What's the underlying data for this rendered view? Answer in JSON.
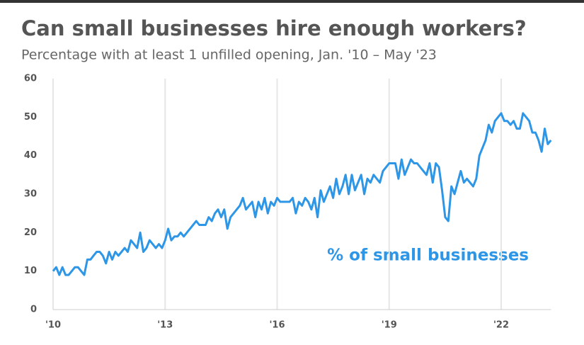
{
  "chart_data": {
    "type": "line",
    "title": "Can small businesses hire enough workers?",
    "subtitle": "Percentage with at least 1 unfilled opening, Jan. '10 –  May '23",
    "annotation": "% of small businesses",
    "categories": [
      "'10",
      null,
      null,
      null,
      null,
      null,
      null,
      null,
      null,
      null,
      null,
      null,
      null,
      null,
      null,
      null,
      null,
      null,
      null,
      null,
      null,
      null,
      null,
      null,
      null,
      null,
      null,
      null,
      null,
      null,
      null,
      null,
      null,
      null,
      null,
      null,
      "'13",
      null,
      null,
      null,
      null,
      null,
      null,
      null,
      null,
      null,
      null,
      null,
      null,
      null,
      null,
      null,
      null,
      null,
      null,
      null,
      null,
      null,
      null,
      null,
      null,
      null,
      null,
      null,
      null,
      null,
      null,
      null,
      null,
      null,
      null,
      null,
      "'16",
      null,
      null,
      null,
      null,
      null,
      null,
      null,
      null,
      null,
      null,
      null,
      null,
      null,
      null,
      null,
      null,
      null,
      null,
      null,
      null,
      null,
      null,
      null,
      null,
      null,
      null,
      null,
      null,
      null,
      null,
      null,
      null,
      null,
      null,
      null,
      "'19",
      null,
      null,
      null,
      null,
      null,
      null,
      null,
      null,
      null,
      null,
      null,
      null,
      null,
      null,
      null,
      null,
      null,
      null,
      null,
      null,
      null,
      null,
      null,
      null,
      null,
      null,
      null,
      null,
      null,
      null,
      null,
      null,
      null,
      null,
      null,
      "'22",
      null,
      null,
      null,
      null,
      null,
      null,
      null,
      null,
      null,
      null,
      null,
      null,
      null,
      null,
      null,
      null
    ],
    "series": [
      {
        "name": "% of small businesses",
        "color": "#2e96e6",
        "values": [
          10,
          11,
          9,
          11,
          9,
          9,
          10,
          11,
          11,
          10,
          9,
          13,
          13,
          14,
          15,
          15,
          14,
          12,
          15,
          13,
          15,
          14,
          15,
          16,
          15,
          18,
          17,
          16,
          20,
          15,
          16,
          18,
          17,
          16,
          17,
          16,
          18,
          21,
          18,
          19,
          19,
          20,
          19,
          20,
          21,
          22,
          23,
          22,
          22,
          22,
          24,
          23,
          25,
          26,
          24,
          26,
          21,
          24,
          25,
          26,
          27,
          29,
          26,
          27,
          28,
          24,
          28,
          26,
          29,
          25,
          28,
          27,
          29,
          28,
          28,
          28,
          28,
          29,
          25,
          28,
          27,
          29,
          28,
          26,
          29,
          24,
          31,
          28,
          30,
          32,
          29,
          34,
          30,
          32,
          35,
          30,
          35,
          31,
          33,
          35,
          30,
          34,
          33,
          35,
          34,
          33,
          36,
          37,
          38,
          38,
          38,
          34,
          39,
          35,
          37,
          39,
          38,
          38,
          37,
          36,
          35,
          38,
          33,
          38,
          37,
          31,
          24,
          23,
          32,
          30,
          33,
          36,
          33,
          34,
          33,
          32,
          34,
          40,
          42,
          44,
          48,
          46,
          49,
          50,
          51,
          49,
          49,
          48,
          49,
          47,
          47,
          51,
          50,
          49,
          46,
          46,
          44,
          41,
          47,
          43,
          44
        ]
      }
    ],
    "ylim": [
      0,
      60
    ],
    "yticks": [
      0,
      10,
      20,
      30,
      40,
      50,
      60
    ],
    "grid": "x"
  }
}
